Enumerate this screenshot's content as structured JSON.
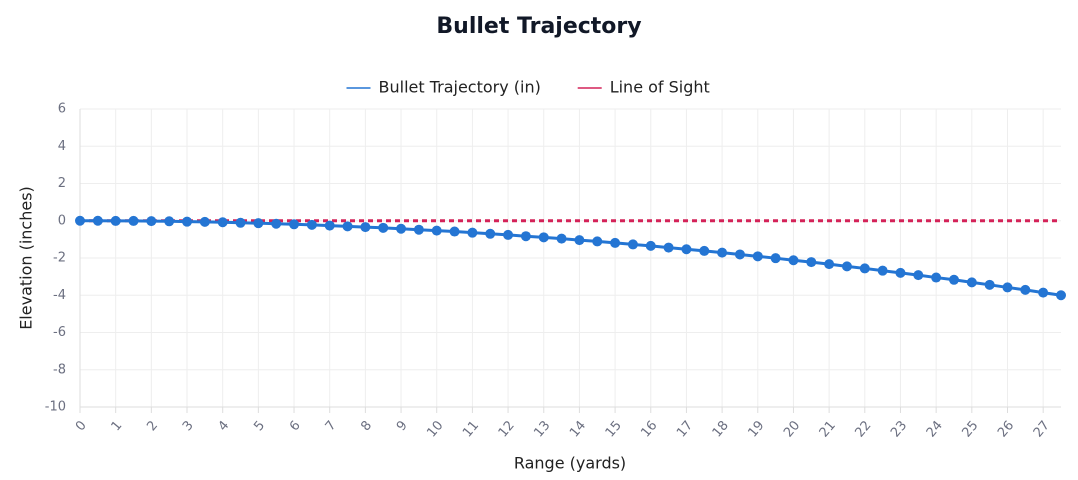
{
  "chart_data": {
    "type": "line",
    "title": "Bullet Trajectory",
    "x_label": "Range (yards)",
    "y_label": "Elevation (inches)",
    "x": [
      0,
      0.5,
      1,
      1.5,
      2,
      2.5,
      3,
      3.5,
      4,
      4.5,
      5,
      5.5,
      6,
      6.5,
      7,
      7.5,
      8,
      8.5,
      9,
      9.5,
      10,
      10.5,
      11,
      11.5,
      12,
      12.5,
      13,
      13.5,
      14,
      14.5,
      15,
      15.5,
      16,
      16.5,
      17,
      17.5,
      18,
      18.5,
      19,
      19.5,
      20,
      20.5,
      21,
      21.5,
      22,
      22.5,
      23,
      23.5,
      24,
      24.5,
      25,
      25.5,
      26,
      26.5,
      27,
      27.5
    ],
    "series": [
      {
        "name": "Bullet Trajectory (in)",
        "color": "#2475d3",
        "markers": true,
        "dashed": false,
        "values": [
          0,
          0,
          -0.01,
          -0.01,
          -0.02,
          -0.03,
          -0.05,
          -0.06,
          -0.08,
          -0.11,
          -0.13,
          -0.16,
          -0.19,
          -0.22,
          -0.26,
          -0.3,
          -0.34,
          -0.38,
          -0.43,
          -0.48,
          -0.53,
          -0.58,
          -0.64,
          -0.7,
          -0.76,
          -0.83,
          -0.89,
          -0.96,
          -1.04,
          -1.11,
          -1.19,
          -1.27,
          -1.35,
          -1.44,
          -1.53,
          -1.62,
          -1.71,
          -1.81,
          -1.91,
          -2.01,
          -2.12,
          -2.22,
          -2.33,
          -2.45,
          -2.56,
          -2.68,
          -2.8,
          -2.92,
          -3.05,
          -3.17,
          -3.31,
          -3.44,
          -3.58,
          -3.71,
          -3.86,
          -4.0
        ]
      },
      {
        "name": "Line of Sight",
        "color": "#d42258",
        "markers": false,
        "dashed": true,
        "values": [
          0,
          0,
          0,
          0,
          0,
          0,
          0,
          0,
          0,
          0,
          0,
          0,
          0,
          0,
          0,
          0,
          0,
          0,
          0,
          0,
          0,
          0,
          0,
          0,
          0,
          0,
          0,
          0,
          0,
          0,
          0,
          0,
          0,
          0,
          0,
          0,
          0,
          0,
          0,
          0,
          0,
          0,
          0,
          0,
          0,
          0,
          0,
          0,
          0,
          0,
          0,
          0,
          0,
          0,
          0,
          0
        ]
      }
    ],
    "xlim": [
      0,
      27.5
    ],
    "xticks": [
      0,
      1,
      2,
      3,
      4,
      5,
      6,
      7,
      8,
      9,
      10,
      11,
      12,
      13,
      14,
      15,
      16,
      17,
      18,
      19,
      20,
      21,
      22,
      23,
      24,
      25,
      26,
      27
    ],
    "ylim": [
      -10,
      6
    ],
    "yticks": [
      -10,
      -8,
      -6,
      -4,
      -2,
      0,
      2,
      4,
      6
    ],
    "grid": true,
    "legend": "top"
  }
}
